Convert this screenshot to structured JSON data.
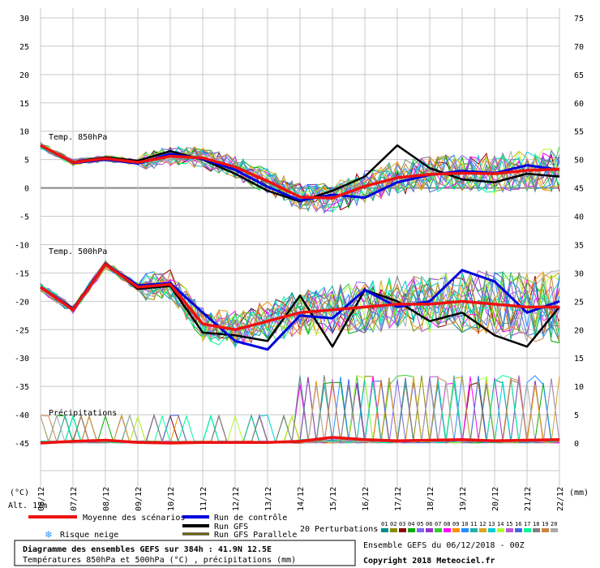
{
  "chart_data": {
    "type": "line",
    "title": "Diagramme des ensembles GEFS sur 384h : 41.9N 12.5E",
    "subtitle": "Températures 850hPa et 500hPa (°C) , précipitations (mm)",
    "run_info": "Ensemble GEFS du 06/12/2018 - 00Z",
    "copyright": "Copyright 2018 Meteociel.fr",
    "left_axis_unit": "(°C)",
    "right_axis_unit": "(mm)",
    "altitude_label": "Alt. 12m",
    "left_ticks": [
      30,
      25,
      20,
      15,
      10,
      5,
      0,
      -5,
      -10,
      -15,
      -20,
      -25,
      -30,
      -35,
      -40,
      -45
    ],
    "right_ticks": [
      75,
      70,
      65,
      60,
      55,
      50,
      45,
      40,
      35,
      30,
      25,
      20,
      15,
      10,
      5,
      0
    ],
    "x_ticks": [
      "06/12",
      "07/12",
      "08/12",
      "09/12",
      "10/12",
      "11/12",
      "12/12",
      "13/12",
      "14/12",
      "15/12",
      "16/12",
      "17/12",
      "18/12",
      "19/12",
      "20/12",
      "21/12",
      "22/12"
    ],
    "panels": {
      "t850": "Temp. 850hPa",
      "t500": "Temp. 500hPa",
      "precip": "Précipitations"
    },
    "legend": {
      "mean": "Moyenne des scénarios",
      "control": "Run de contrôle",
      "gfs": "Run GFS",
      "gfs_par": "Run GFS Parallele",
      "snow": "Risque neige",
      "perturb_label": "20 Perturbations",
      "perturb_ids": [
        "01",
        "02",
        "03",
        "04",
        "05",
        "06",
        "07",
        "08",
        "09",
        "10",
        "11",
        "12",
        "13",
        "14",
        "15",
        "16",
        "17",
        "18",
        "19",
        "20"
      ]
    },
    "colors": {
      "mean": "#ee1111",
      "control": "#0000dd",
      "gfs": "#000000",
      "gfs_par_outer": "#000000",
      "gfs_par_inner": "#d4c800",
      "grid": "#c8c8c8",
      "zero_line": "#888888",
      "perturb": [
        "#008b8b",
        "#8b8b00",
        "#8b0000",
        "#00aa00",
        "#7b68ee",
        "#9932cc",
        "#32cd32",
        "#ff00ff",
        "#ff8c00",
        "#1e90ff",
        "#20b2aa",
        "#daa520",
        "#00ced1",
        "#adff2f",
        "#ba55d3",
        "#4169e1",
        "#00fa9a",
        "#808080",
        "#cd853f",
        "#a9a9a9"
      ]
    },
    "ylim_c": [
      -45,
      30
    ],
    "t850_series": {
      "mean": [
        7.5,
        4.5,
        5.2,
        4.5,
        5.6,
        5.3,
        3.7,
        1.2,
        -1.6,
        -1.8,
        0.3,
        1.8,
        2.4,
        2.6,
        2.5,
        3.1,
        3.3
      ],
      "control": [
        7.5,
        4.4,
        5.0,
        4.3,
        6.0,
        5.1,
        3.2,
        0.2,
        -2.2,
        -1.2,
        -1.7,
        1.0,
        2.3,
        3.0,
        2.6,
        4.0,
        3.2
      ],
      "gfs": [
        7.5,
        4.6,
        5.4,
        4.8,
        6.5,
        5.0,
        2.5,
        -0.5,
        -2.4,
        -0.5,
        2.0,
        7.5,
        3.5,
        1.5,
        1.0,
        2.5,
        2.0
      ]
    },
    "t500_series": {
      "mean": [
        -17.5,
        -21.5,
        -13.5,
        -17.5,
        -17.0,
        -24.0,
        -25.0,
        -23.5,
        -22.0,
        -21.5,
        -21.0,
        -20.5,
        -20.5,
        -20.0,
        -20.5,
        -21.0,
        -21.0
      ],
      "control": [
        -17.5,
        -21.3,
        -13.4,
        -17.2,
        -16.8,
        -22.0,
        -27.0,
        -28.5,
        -22.5,
        -23.0,
        -18.0,
        -21.0,
        -20.0,
        -14.5,
        -16.5,
        -22.0,
        -20.0
      ],
      "gfs": [
        -17.5,
        -21.6,
        -13.3,
        -17.8,
        -17.3,
        -25.5,
        -26.0,
        -27.0,
        -19.0,
        -28.0,
        -18.0,
        -20.0,
        -23.5,
        -22.0,
        -26.0,
        -28.0,
        -21.0
      ]
    },
    "precip_series": {
      "mean": [
        0.0,
        0.3,
        0.5,
        0.1,
        0.0,
        0.1,
        0.1,
        0.1,
        0.3,
        1.0,
        0.6,
        0.4,
        0.5,
        0.6,
        0.4,
        0.5,
        0.6
      ]
    }
  }
}
